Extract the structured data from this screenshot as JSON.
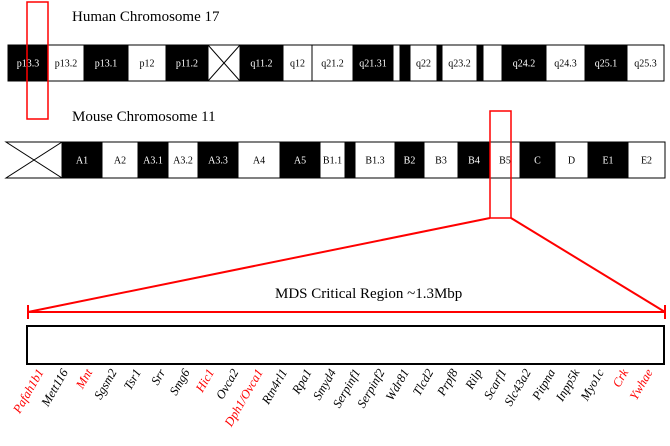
{
  "human": {
    "title": "Human Chromosome 17",
    "bands": [
      {
        "label": "p13.3",
        "fill": "black"
      },
      {
        "label": "p13.2",
        "fill": "white"
      },
      {
        "label": "p13.1",
        "fill": "black"
      },
      {
        "label": "p12",
        "fill": "white"
      },
      {
        "label": "p11.2",
        "fill": "black"
      },
      {
        "label": "",
        "fill": "centromere"
      },
      {
        "label": "q11.2",
        "fill": "black"
      },
      {
        "label": "q12",
        "fill": "white"
      },
      {
        "label": "q21.2",
        "fill": "white"
      },
      {
        "label": "q21.31",
        "fill": "black"
      },
      {
        "label": "",
        "fill": "white"
      },
      {
        "label": "",
        "fill": "black"
      },
      {
        "label": "q22",
        "fill": "white"
      },
      {
        "label": "",
        "fill": "black"
      },
      {
        "label": "q23.2",
        "fill": "white"
      },
      {
        "label": "",
        "fill": "black"
      },
      {
        "label": "",
        "fill": "white"
      },
      {
        "label": "q24.2",
        "fill": "black"
      },
      {
        "label": "q24.3",
        "fill": "white"
      },
      {
        "label": "q25.1",
        "fill": "black"
      },
      {
        "label": "q25.3",
        "fill": "white"
      }
    ]
  },
  "mouse": {
    "title": "Mouse Chromosome 11",
    "bands": [
      {
        "label": "",
        "fill": "centromere"
      },
      {
        "label": "A1",
        "fill": "black"
      },
      {
        "label": "A2",
        "fill": "white"
      },
      {
        "label": "A3.1",
        "fill": "black"
      },
      {
        "label": "A3.2",
        "fill": "white"
      },
      {
        "label": "A3.3",
        "fill": "black"
      },
      {
        "label": "A4",
        "fill": "white"
      },
      {
        "label": "A5",
        "fill": "black"
      },
      {
        "label": "B1.1",
        "fill": "white"
      },
      {
        "label": "",
        "fill": "black"
      },
      {
        "label": "B1.3",
        "fill": "white"
      },
      {
        "label": "B2",
        "fill": "black"
      },
      {
        "label": "B3",
        "fill": "white"
      },
      {
        "label": "B4",
        "fill": "black"
      },
      {
        "label": "B5",
        "fill": "white"
      },
      {
        "label": "C",
        "fill": "black"
      },
      {
        "label": "D",
        "fill": "white"
      },
      {
        "label": "E1",
        "fill": "black"
      },
      {
        "label": "E2",
        "fill": "white"
      }
    ]
  },
  "region": {
    "label": "MDS Critical Region ~1.3Mbp",
    "highlight_color": "#ff0000"
  },
  "genes": [
    {
      "name": "Pafah1b1",
      "highlighted": true
    },
    {
      "name": "Mett116",
      "highlighted": false
    },
    {
      "name": "Mnt",
      "highlighted": true
    },
    {
      "name": "Sgsm2",
      "highlighted": false
    },
    {
      "name": "Tsr1",
      "highlighted": false
    },
    {
      "name": "Srr",
      "highlighted": false
    },
    {
      "name": "Smg6",
      "highlighted": false
    },
    {
      "name": "Hic1",
      "highlighted": true
    },
    {
      "name": "Ovca2",
      "highlighted": false
    },
    {
      "name": "Dph1/Ovca1",
      "highlighted": true
    },
    {
      "name": "Rtn4rl1",
      "highlighted": false
    },
    {
      "name": "Rpa1",
      "highlighted": false
    },
    {
      "name": "Smyd4",
      "highlighted": false
    },
    {
      "name": "Serpinf1",
      "highlighted": false
    },
    {
      "name": "Serpinf2",
      "highlighted": false
    },
    {
      "name": "Wdr81",
      "highlighted": false
    },
    {
      "name": "Tlcd2",
      "highlighted": false
    },
    {
      "name": "Prpf8",
      "highlighted": false
    },
    {
      "name": "Rilp",
      "highlighted": false
    },
    {
      "name": "Scarf1",
      "highlighted": false
    },
    {
      "name": "Slc43a2",
      "highlighted": false
    },
    {
      "name": "Pitpna",
      "highlighted": false
    },
    {
      "name": "Inpp5k",
      "highlighted": false
    },
    {
      "name": "Myo1c",
      "highlighted": false
    },
    {
      "name": "Crk",
      "highlighted": true
    },
    {
      "name": "Ywhae",
      "highlighted": true
    }
  ]
}
